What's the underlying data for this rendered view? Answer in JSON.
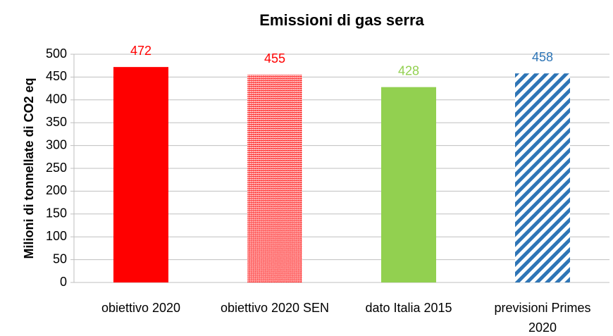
{
  "chart_data": {
    "type": "bar",
    "title": "Emissioni di gas serra",
    "y_label": "Milioni di tonnellate di CO2 eq",
    "categories": [
      "obiettivo 2020",
      "obiettivo 2020 SEN",
      "dato Italia 2015",
      "previsioni Primes 2020"
    ],
    "values": [
      472,
      455,
      428,
      458
    ],
    "colors": [
      "#ff0000",
      "#ff0000",
      "#92d050",
      "#2e75b6"
    ],
    "patterns": [
      "solid",
      "checker",
      "solid",
      "stripes"
    ],
    "ylim": [
      0,
      500
    ],
    "yticks": [
      0,
      50,
      100,
      150,
      200,
      250,
      300,
      350,
      400,
      450,
      500
    ],
    "grid": true
  }
}
